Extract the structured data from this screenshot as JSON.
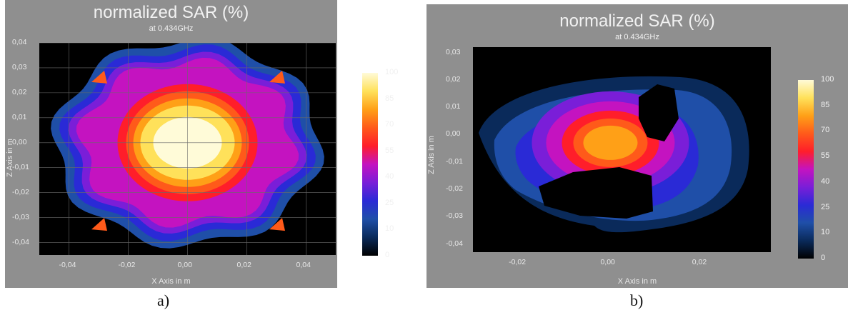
{
  "chart_data": [
    {
      "type": "heatmap",
      "title": "normalized SAR (%)",
      "subtitle": "at 0.434GHz",
      "xlabel": "X Axis in m",
      "ylabel": "Z Axis in m",
      "xlim": [
        -0.05,
        0.05
      ],
      "ylim": [
        -0.045,
        0.04
      ],
      "x_ticks": [
        "-0,04",
        "-0,02",
        "0,00",
        "0,02",
        "0,04"
      ],
      "y_ticks": [
        "0,04",
        "0,03",
        "0,02",
        "0,01",
        "0,00",
        "-0,01",
        "-0,02",
        "-0,03",
        "-0,04"
      ],
      "colorbar_ticks": [
        "100",
        "85",
        "70",
        "55",
        "40",
        "25",
        "10",
        "0"
      ],
      "colorbar_range": [
        0,
        100
      ],
      "grid": true,
      "peak": {
        "x": 0.0,
        "z": 0.0,
        "value": 100
      },
      "caption": "a)"
    },
    {
      "type": "heatmap",
      "title": "normalized SAR (%)",
      "subtitle": "at 0.434GHz",
      "xlabel": "X Axis in m",
      "ylabel": "Z Axis in m",
      "xlim": [
        -0.03,
        0.035
      ],
      "ylim": [
        -0.043,
        0.032
      ],
      "x_ticks": [
        "-0,02",
        "0,00",
        "0,02"
      ],
      "y_ticks": [
        "0,03",
        "0,02",
        "0,01",
        "0,00",
        "-0,01",
        "-0,02",
        "-0,03",
        "-0,04"
      ],
      "colorbar_ticks": [
        "100",
        "85",
        "70",
        "55",
        "40",
        "25",
        "10",
        "0"
      ],
      "colorbar_range": [
        0,
        100
      ],
      "grid": false,
      "peak": {
        "x": 0.0,
        "z": -0.003,
        "value": 75
      },
      "caption": "b)"
    }
  ],
  "colors": {
    "panel_bg": "#8f8f8f",
    "plot_bg": "#000000",
    "scale": [
      "#000000",
      "#0a2a5a",
      "#1f4fa8",
      "#2a2ad6",
      "#7a1ed8",
      "#c413c0",
      "#ff1e2a",
      "#ff5a1a",
      "#ffa017",
      "#ffe15a",
      "#fffbd8"
    ]
  }
}
